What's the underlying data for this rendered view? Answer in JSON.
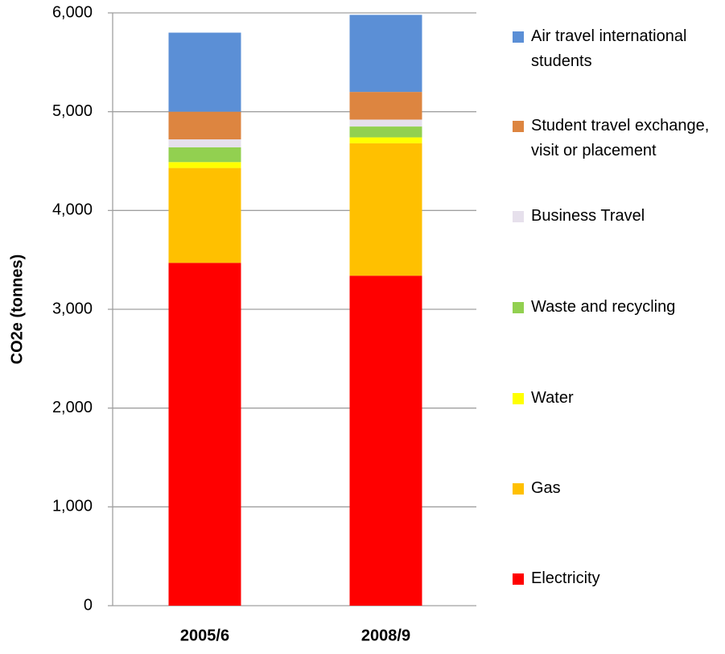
{
  "chart_data": {
    "type": "stacked-bar",
    "y_label": "CO2e (tonnes)",
    "categories": [
      "2005/6",
      "2008/9"
    ],
    "series": [
      {
        "name": "Electricity",
        "color": "#ff0000",
        "values": [
          3470,
          3340
        ]
      },
      {
        "name": "Gas",
        "color": "#ffc000",
        "values": [
          960,
          1340
        ]
      },
      {
        "name": "Water",
        "color": "#ffff00",
        "values": [
          60,
          60
        ]
      },
      {
        "name": "Waste and recycling",
        "color": "#92d050",
        "values": [
          150,
          110
        ]
      },
      {
        "name": "Business Travel",
        "color": "#e6e0ec",
        "values": [
          80,
          70
        ]
      },
      {
        "name": "Student travel exchange, visit or placement",
        "color": "#dd8540",
        "values": [
          280,
          280
        ]
      },
      {
        "name": "Air travel international students",
        "color": "#5b8fd6",
        "values": [
          800,
          780
        ]
      }
    ],
    "ylim": [
      0,
      6000
    ],
    "yticks": [
      0,
      {
        "value": 1000,
        "label": "1,000"
      },
      {
        "value": 2000,
        "label": "2,000"
      },
      {
        "value": 3000,
        "label": "3,000"
      },
      {
        "value": 4000,
        "label": "4,000"
      },
      {
        "value": 5000,
        "label": "5,000"
      },
      {
        "value": 6000,
        "label": "6,000"
      }
    ],
    "grid": true
  }
}
